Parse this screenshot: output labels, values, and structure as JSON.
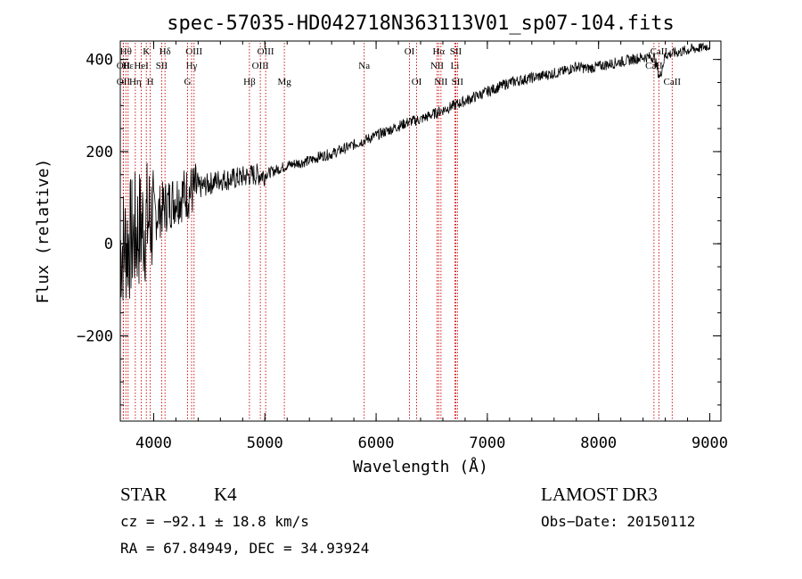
{
  "chart_data": {
    "type": "line",
    "title": "spec-57035-HD042718N363113V01_sp07-104.fits",
    "xlabel": "Wavelength (Å)",
    "ylabel": "Flux (relative)",
    "xlim": [
      3700,
      9100
    ],
    "ylim": [
      -385,
      440
    ],
    "xticks": [
      4000,
      5000,
      6000,
      7000,
      8000,
      9000
    ],
    "xtick_labels": [
      "4000",
      "5000",
      "6000",
      "7000",
      "8000",
      "9000"
    ],
    "yticks": [
      -200,
      0,
      200,
      400
    ],
    "ytick_labels": [
      "−200",
      "0",
      "200",
      "400"
    ],
    "grid": false,
    "series": [
      {
        "name": "spectrum",
        "x": [
          3700,
          3800,
          3900,
          4000,
          4100,
          4200,
          4300,
          4400,
          4500,
          4600,
          4700,
          4800,
          4900,
          5000,
          5100,
          5200,
          5300,
          5400,
          5500,
          5600,
          5700,
          5800,
          5900,
          6000,
          6100,
          6200,
          6300,
          6400,
          6500,
          6600,
          6700,
          6800,
          6900,
          7000,
          7100,
          7200,
          7300,
          7400,
          7500,
          7600,
          7700,
          7800,
          7900,
          8000,
          8100,
          8200,
          8300,
          8400,
          8500,
          8550,
          8600,
          8700,
          8800,
          8900,
          9000
        ],
        "y": [
          -10,
          10,
          40,
          60,
          80,
          100,
          110,
          120,
          130,
          140,
          140,
          145,
          150,
          150,
          160,
          170,
          175,
          180,
          190,
          195,
          205,
          215,
          225,
          235,
          245,
          255,
          265,
          270,
          280,
          290,
          300,
          310,
          320,
          330,
          340,
          350,
          355,
          360,
          365,
          370,
          375,
          385,
          380,
          385,
          390,
          395,
          400,
          405,
          405,
          360,
          410,
          415,
          420,
          425,
          430
        ]
      }
    ],
    "line_annotations": [
      {
        "label": "OII",
        "x": 3727,
        "row": 2
      },
      {
        "label": "OII",
        "x": 3727,
        "row": 3
      },
      {
        "label": "Hθ",
        "x": 3750,
        "row": 1
      },
      {
        "label": "Hε",
        "x": 3770,
        "row": 2
      },
      {
        "label": "Hη",
        "x": 3835,
        "row": 3
      },
      {
        "label": "K",
        "x": 3934,
        "row": 1
      },
      {
        "label": "HeI",
        "x": 3889,
        "row": 2
      },
      {
        "label": "H",
        "x": 3969,
        "row": 3
      },
      {
        "label": "Hδ",
        "x": 4102,
        "row": 1
      },
      {
        "label": "SII",
        "x": 4072,
        "row": 2
      },
      {
        "label": "OIII",
        "x": 4363,
        "row": 1
      },
      {
        "label": "Hγ",
        "x": 4341,
        "row": 2
      },
      {
        "label": "G",
        "x": 4305,
        "row": 3
      },
      {
        "label": "Hβ",
        "x": 4861,
        "row": 3
      },
      {
        "label": "OIII",
        "x": 5007,
        "row": 1
      },
      {
        "label": "OIII",
        "x": 4959,
        "row": 2
      },
      {
        "label": "Mg",
        "x": 5175,
        "row": 3
      },
      {
        "label": "Na",
        "x": 5893,
        "row": 2
      },
      {
        "label": "OI",
        "x": 6300,
        "row": 1
      },
      {
        "label": "OI",
        "x": 6364,
        "row": 3
      },
      {
        "label": "Hα",
        "x": 6563,
        "row": 1
      },
      {
        "label": "SII",
        "x": 6716,
        "row": 1
      },
      {
        "label": "NII",
        "x": 6548,
        "row": 2
      },
      {
        "label": "Li",
        "x": 6708,
        "row": 2
      },
      {
        "label": "NII",
        "x": 6583,
        "row": 3
      },
      {
        "label": "SII",
        "x": 6731,
        "row": 3
      },
      {
        "label": "CaII",
        "x": 8542,
        "row": 1
      },
      {
        "label": "CaII",
        "x": 8498,
        "row": 2
      },
      {
        "label": "CaII",
        "x": 8662,
        "row": 3
      }
    ]
  },
  "info": {
    "class_label": "STAR",
    "subclass_label": "K4",
    "survey_label": "LAMOST DR3",
    "cz_text": "cz = −92.1 ± 18.8 km/s",
    "obs_date_text": "Obs−Date: 20150112",
    "coords_text": "RA =  67.84949, DEC =  34.93924"
  },
  "colors": {
    "spectrum": "#000000",
    "line_markers": "#cc0000",
    "axes": "#000000"
  }
}
